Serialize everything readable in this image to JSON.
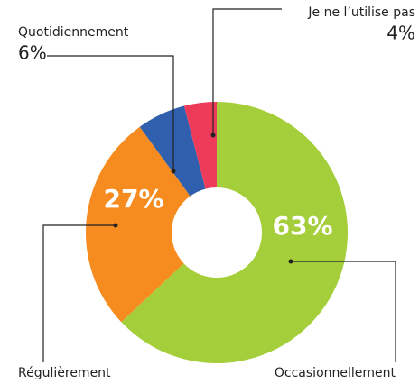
{
  "chart_data": {
    "type": "donut",
    "categories": [
      "Occasionnellement",
      "Régulièrement",
      "Quotidiennement",
      "Je ne l’utilise pas"
    ],
    "values": [
      63,
      27,
      6,
      4
    ],
    "value_labels": [
      "63%",
      "27%",
      "6%",
      "4%"
    ],
    "colors": [
      "#a5cf3a",
      "#f68b1f",
      "#2f5fad",
      "#ef3b5a"
    ]
  }
}
